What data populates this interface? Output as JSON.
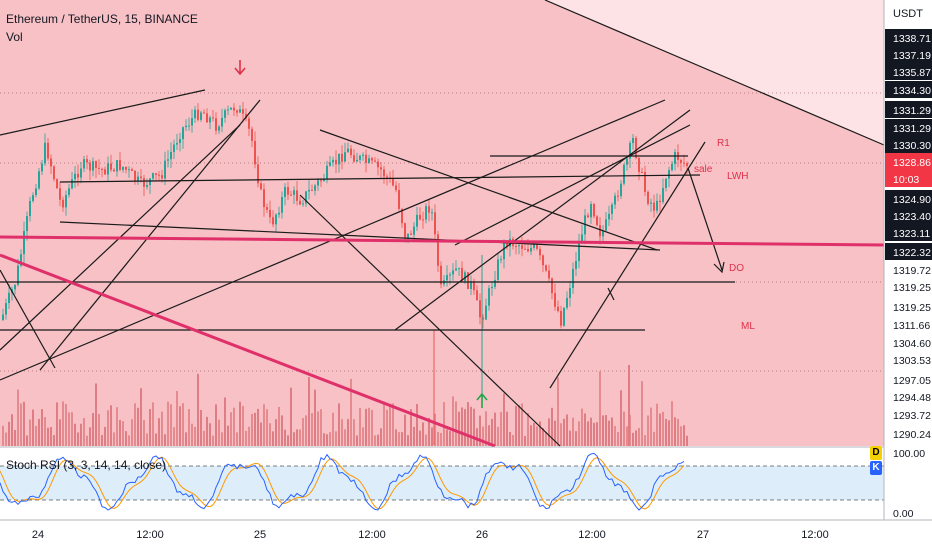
{
  "header": {
    "symbol": "Ethereum / TetherUS, 15, BINANCE",
    "volume_label": "Vol"
  },
  "price_axis": {
    "currency": "USDT",
    "ticks": [
      "1338.71",
      "1337.19",
      "1335.87",
      "1334.30",
      "1331.29",
      "1331.29",
      "1330.30",
      "1328.86",
      "10:03",
      "1324.90",
      "1323.40",
      "1323.11",
      "1322.32",
      "1319.72",
      "1319.25",
      "1319.25",
      "1311.66",
      "1304.60",
      "1303.53",
      "1297.05",
      "1294.48",
      "1293.72",
      "1290.24"
    ],
    "current_price": "1328.86",
    "countdown": "10:03"
  },
  "time_axis": {
    "ticks": [
      "24",
      "12:00",
      "25",
      "12:00",
      "26",
      "12:00",
      "27",
      "12:00"
    ]
  },
  "annotations": {
    "r1": "R1",
    "sale": "sale",
    "lwh": "LWH",
    "do": "DO",
    "ml": "ML"
  },
  "oscillator": {
    "label": "Stoch RSI (3, 3, 14, 14, close)",
    "ticks": [
      "100.00",
      "0.00"
    ],
    "badge_d": "D",
    "badge_k": "K"
  },
  "colors": {
    "background_zone": "#f7c1c6",
    "upper_zone": "#fde3e5",
    "bull_candle": "#26a69a",
    "bear_candle": "#ef5350",
    "magenta_line": "#e0306a",
    "k_line": "#2962ff",
    "d_line": "#ff9800",
    "osc_band": "#ddeefa"
  },
  "chart_data": {
    "type": "candlestick",
    "x": [
      "24",
      "12:00",
      "25",
      "12:00",
      "26",
      "12:00",
      "27",
      "12:00"
    ],
    "ylim": [
      1290.24,
      1338.71
    ],
    "price_levels": {
      "LWH": 1328.86,
      "DO": 1319.72,
      "ML": 1311.66
    },
    "current_price": 1328.86
  }
}
